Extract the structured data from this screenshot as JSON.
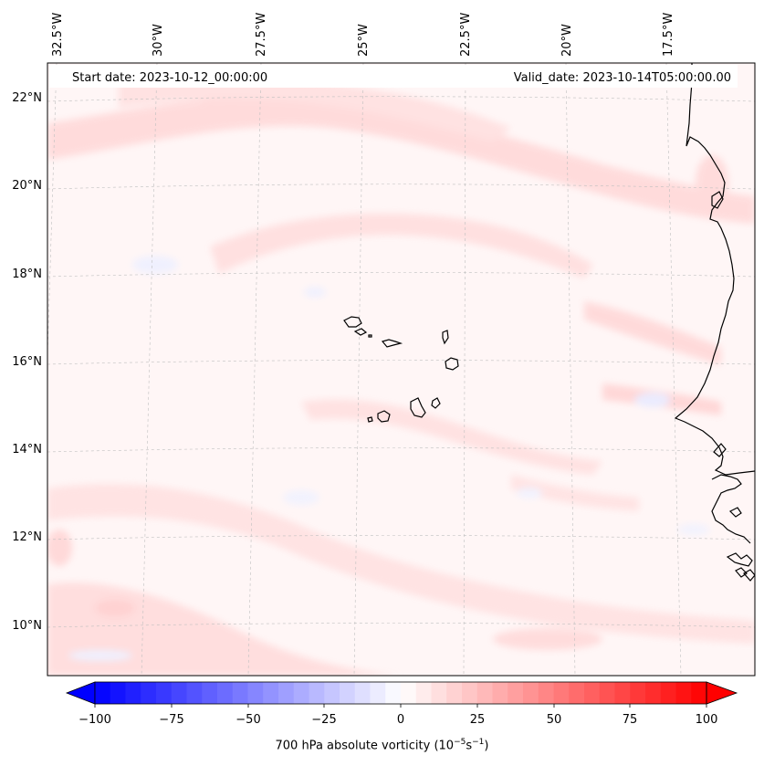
{
  "header": {
    "start_date": "Start date: 2023-10-12_00:00:00",
    "valid_date": "Valid_date: 2023-10-14T05:00:00.00"
  },
  "map": {
    "lon_labels": [
      "32.5°W",
      "30°W",
      "27.5°W",
      "25°W",
      "22.5°W",
      "20°W",
      "17.5°W"
    ],
    "lat_labels": [
      "22°N",
      "20°N",
      "18°N",
      "16°N",
      "14°N",
      "12°N",
      "10°N"
    ],
    "field": "700 hPa absolute vorticity"
  },
  "colorbar": {
    "ticks": [
      "−100",
      "−75",
      "−50",
      "−25",
      "0",
      "25",
      "50",
      "75",
      "100"
    ],
    "label_main": "700 hPa absolute vorticity (10",
    "label_exp1": "−5",
    "label_mid": "s",
    "label_exp2": "−1",
    "label_end": ")",
    "min_color": "#0000ff",
    "mid_color": "#ffffff",
    "max_color": "#ff0000"
  }
}
